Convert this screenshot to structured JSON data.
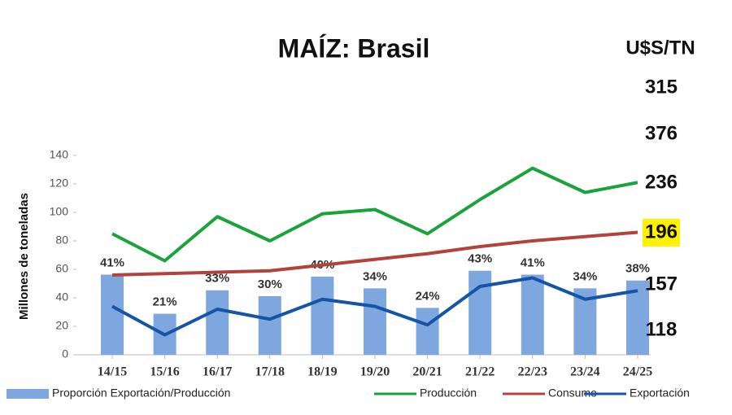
{
  "chart_data": {
    "type": "bar-line",
    "title": "MAÍZ: Brasil",
    "right_title": "U$S/TN",
    "ylabel": "Millones de toneladas",
    "categories": [
      "14/15",
      "15/16",
      "16/17",
      "17/18",
      "18/19",
      "19/20",
      "20/21",
      "21/22",
      "22/23",
      "23/24",
      "24/25"
    ],
    "ylim": [
      0,
      140
    ],
    "yticks": [
      0,
      20,
      40,
      60,
      80,
      100,
      120,
      140
    ],
    "y2lim": [
      0,
      102
    ],
    "series": [
      {
        "name": "Proporción Exportación/Producción",
        "type": "bar",
        "axis": "y2",
        "color": "#7fa7df",
        "values": [
          41,
          21,
          33,
          30,
          40,
          34,
          24,
          43,
          41,
          34,
          38
        ],
        "value_labels": [
          "41%",
          "21%",
          "33%",
          "30%",
          "40%",
          "34%",
          "24%",
          "43%",
          "41%",
          "34%",
          "38%"
        ]
      },
      {
        "name": "Producción",
        "type": "line",
        "color": "#1aa33a",
        "values": [
          85,
          66,
          97,
          80,
          99,
          102,
          85,
          109,
          131,
          114,
          121
        ]
      },
      {
        "name": "Consumo",
        "type": "line",
        "color": "#b2423c",
        "values": [
          56,
          57,
          58,
          59,
          63,
          67,
          71,
          76,
          80,
          83,
          86
        ]
      },
      {
        "name": "Exportación",
        "type": "line",
        "color": "#1555a8",
        "values": [
          34,
          14,
          32,
          25,
          39,
          34,
          21,
          48,
          54,
          39,
          45
        ]
      }
    ],
    "right_labels": [
      "315",
      "376",
      "236",
      "196",
      "157",
      "118"
    ]
  }
}
